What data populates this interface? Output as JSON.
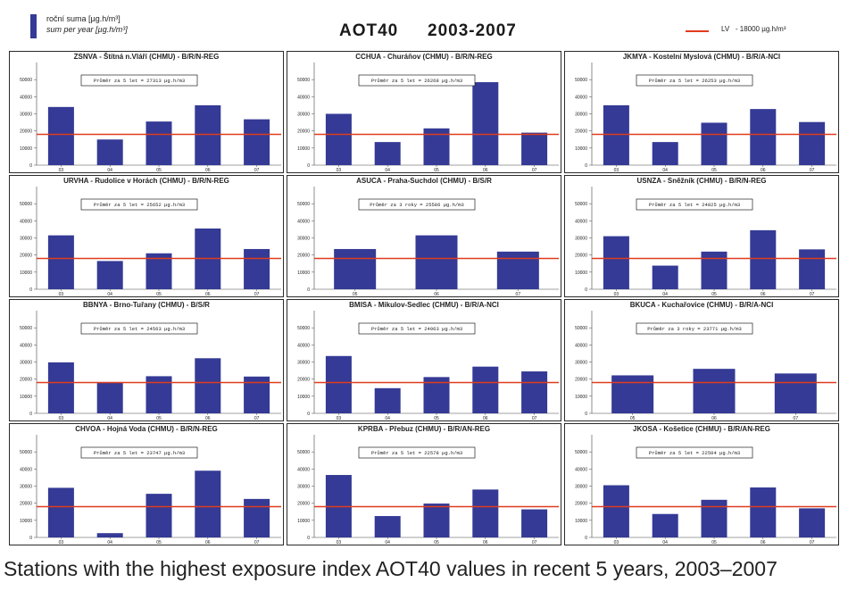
{
  "header": {
    "legend_label_1": "roční suma [µg.h/m³]",
    "legend_label_2": "sum per year [µg.h/m³]",
    "title_main": "AOT40",
    "title_years": "2003-2007",
    "lv_label": "LV   - 18000 µg.h/m³"
  },
  "caption": "Stations with the highest exposure index AOT40 values in recent 5 years, 2003–2007",
  "colors": {
    "bar": "#343a95",
    "limit_line": "#e03c1e",
    "frame": "#2a2a2a"
  },
  "chart_data": [
    {
      "type": "bar",
      "title": "ZSNVA - Štítná n.Vláří (CHMU) - B/R/N-REG",
      "categories": [
        "03",
        "04",
        "05",
        "06",
        "07"
      ],
      "values": [
        34000,
        15000,
        25500,
        35000,
        26800
      ],
      "annotation": "Průměr za 5 let = 27313 µg.h/m3",
      "limit": 18000,
      "ylim": [
        0,
        60000
      ],
      "yticks": [
        "0",
        "10000",
        "20000",
        "30000",
        "40000",
        "50000"
      ]
    },
    {
      "type": "bar",
      "title": "CCHUA - Churáňov (CHMU) - B/R/N-REG",
      "categories": [
        "03",
        "04",
        "05",
        "06",
        "07"
      ],
      "values": [
        30000,
        13500,
        21500,
        48500,
        19000
      ],
      "annotation": "Průměr za 5 let = 26268 µg.h/m3",
      "limit": 18000,
      "ylim": [
        0,
        60000
      ],
      "yticks": [
        "0",
        "10000",
        "20000",
        "30000",
        "40000",
        "50000"
      ]
    },
    {
      "type": "bar",
      "title": "JKMYA - Kostelní Myslová (CHMU) - B/R/A-NCI",
      "categories": [
        "03",
        "04",
        "05",
        "06",
        "07"
      ],
      "values": [
        35000,
        13500,
        24800,
        32800,
        25200
      ],
      "annotation": "Průměr za 5 let = 26253 µg.h/m3",
      "limit": 18000,
      "ylim": [
        0,
        60000
      ],
      "yticks": [
        "0",
        "10000",
        "20000",
        "30000",
        "40000",
        "50000"
      ]
    },
    {
      "type": "bar",
      "title": "URVHA - Rudolice v Horách (CHMU) - B/R/N-REG",
      "categories": [
        "03",
        "04",
        "05",
        "06",
        "07"
      ],
      "values": [
        31500,
        16500,
        21000,
        35500,
        23500
      ],
      "annotation": "Průměr za 5 let = 25652 µg.h/m3",
      "limit": 18000,
      "ylim": [
        0,
        60000
      ],
      "yticks": [
        "0",
        "10000",
        "20000",
        "30000",
        "40000",
        "50000"
      ]
    },
    {
      "type": "bar",
      "title": "ASUCA - Praha-Suchdol (CHMU) - B/S/R",
      "categories": [
        "05",
        "06",
        "07"
      ],
      "values": [
        23500,
        31500,
        22000
      ],
      "annotation": "Průměr za 3 roky = 25586 µg.h/m3",
      "limit": 18000,
      "ylim": [
        0,
        60000
      ],
      "yticks": [
        "0",
        "10000",
        "20000",
        "30000",
        "40000",
        "50000"
      ]
    },
    {
      "type": "bar",
      "title": "USNZA - Sněžník (CHMU) - B/R/N-REG",
      "categories": [
        "03",
        "04",
        "05",
        "06",
        "07"
      ],
      "values": [
        31000,
        13800,
        22000,
        34500,
        23300
      ],
      "annotation": "Průměr za 5 let = 24825 µg.h/m3",
      "limit": 18000,
      "ylim": [
        0,
        60000
      ],
      "yticks": [
        "0",
        "10000",
        "20000",
        "30000",
        "40000",
        "50000"
      ]
    },
    {
      "type": "bar",
      "title": "BBNYA - Brno-Tuřany (CHMU) - B/S/R",
      "categories": [
        "03",
        "04",
        "05",
        "06",
        "07"
      ],
      "values": [
        29800,
        17800,
        21700,
        32200,
        21500
      ],
      "annotation": "Průměr za 5 let = 24563 µg.h/m3",
      "limit": 18000,
      "ylim": [
        0,
        60000
      ],
      "yticks": [
        "0",
        "10000",
        "20000",
        "30000",
        "40000",
        "50000"
      ]
    },
    {
      "type": "bar",
      "title": "BMISA - Mikulov-Sedlec (CHMU) - B/R/A-NCI",
      "categories": [
        "03",
        "04",
        "05",
        "06",
        "07"
      ],
      "values": [
        33500,
        14700,
        21200,
        27300,
        24500
      ],
      "annotation": "Průměr za 5 let = 24063 µg.h/m3",
      "limit": 18000,
      "ylim": [
        0,
        60000
      ],
      "yticks": [
        "0",
        "10000",
        "20000",
        "30000",
        "40000",
        "50000"
      ]
    },
    {
      "type": "bar",
      "title": "BKUCA - Kuchařovice (CHMU) - B/R/A-NCI",
      "categories": [
        "05",
        "06",
        "07"
      ],
      "values": [
        22200,
        26000,
        23300
      ],
      "annotation": "Průměr za 3 roky = 23771 µg.h/m3",
      "limit": 18000,
      "ylim": [
        0,
        60000
      ],
      "yticks": [
        "0",
        "10000",
        "20000",
        "30000",
        "40000",
        "50000"
      ]
    },
    {
      "type": "bar",
      "title": "CHVOA - Hojná Voda (CHMU) - B/R/N-REG",
      "categories": [
        "03",
        "04",
        "05",
        "06",
        "07"
      ],
      "values": [
        29000,
        2500,
        25500,
        39000,
        22500
      ],
      "annotation": "Průměr za 5 let = 23747 µg.h/m3",
      "limit": 18000,
      "ylim": [
        0,
        60000
      ],
      "yticks": [
        "0",
        "10000",
        "20000",
        "30000",
        "40000",
        "50000"
      ]
    },
    {
      "type": "bar",
      "title": "KPRBA - Přebuz (CHMU) - B/R/AN-REG",
      "categories": [
        "03",
        "04",
        "05",
        "06",
        "07"
      ],
      "values": [
        36500,
        12500,
        19800,
        28000,
        16400
      ],
      "annotation": "Průměr za 5 let = 22578 µg.h/m3",
      "limit": 18000,
      "ylim": [
        0,
        60000
      ],
      "yticks": [
        "0",
        "10000",
        "20000",
        "30000",
        "40000",
        "50000"
      ]
    },
    {
      "type": "bar",
      "title": "JKOSA - Košetice (CHMU) - B/R/AN-REG",
      "categories": [
        "03",
        "04",
        "05",
        "06",
        "07"
      ],
      "values": [
        30500,
        13700,
        22000,
        29200,
        17000
      ],
      "annotation": "Průměr za 5 let = 22504 µg.h/m3",
      "limit": 18000,
      "ylim": [
        0,
        60000
      ],
      "yticks": [
        "0",
        "10000",
        "20000",
        "30000",
        "40000",
        "50000"
      ]
    }
  ]
}
